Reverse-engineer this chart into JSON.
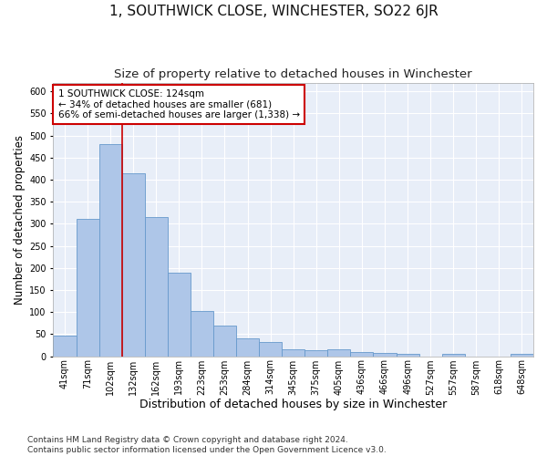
{
  "title": "1, SOUTHWICK CLOSE, WINCHESTER, SO22 6JR",
  "subtitle": "Size of property relative to detached houses in Winchester",
  "xlabel": "Distribution of detached houses by size in Winchester",
  "ylabel": "Number of detached properties",
  "categories": [
    "41sqm",
    "71sqm",
    "102sqm",
    "132sqm",
    "162sqm",
    "193sqm",
    "223sqm",
    "253sqm",
    "284sqm",
    "314sqm",
    "345sqm",
    "375sqm",
    "405sqm",
    "436sqm",
    "466sqm",
    "496sqm",
    "527sqm",
    "557sqm",
    "587sqm",
    "618sqm",
    "648sqm"
  ],
  "values": [
    47,
    312,
    480,
    415,
    315,
    190,
    103,
    70,
    40,
    33,
    15,
    13,
    15,
    10,
    8,
    5,
    0,
    5,
    0,
    0,
    5
  ],
  "bar_color": "#aec6e8",
  "bar_edge_color": "#6699cc",
  "background_color": "#e8eef8",
  "vline_color": "#cc0000",
  "vline_x_index": 2,
  "annotation_text": "1 SOUTHWICK CLOSE: 124sqm\n← 34% of detached houses are smaller (681)\n66% of semi-detached houses are larger (1,338) →",
  "annotation_box_facecolor": "#ffffff",
  "annotation_box_edgecolor": "#cc0000",
  "ylim": [
    0,
    620
  ],
  "yticks": [
    0,
    50,
    100,
    150,
    200,
    250,
    300,
    350,
    400,
    450,
    500,
    550,
    600
  ],
  "footer": "Contains HM Land Registry data © Crown copyright and database right 2024.\nContains public sector information licensed under the Open Government Licence v3.0.",
  "title_fontsize": 11,
  "subtitle_fontsize": 9.5,
  "xlabel_fontsize": 9,
  "ylabel_fontsize": 8.5,
  "tick_fontsize": 7,
  "annotation_fontsize": 7.5,
  "footer_fontsize": 6.5,
  "fig_width": 6.0,
  "fig_height": 5.0,
  "dpi": 100
}
